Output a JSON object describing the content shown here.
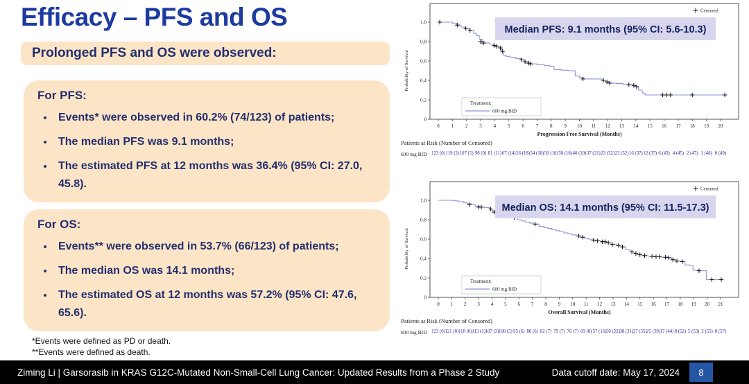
{
  "slide": {
    "title": "Efficacy – PFS and OS",
    "subtitle": "Prolonged PFS and OS were observed:",
    "pfs_box": {
      "heading": "For PFS:",
      "bullets": [
        "Events* were observed in 60.2% (74/123) of patients;",
        "The median PFS was 9.1 months;",
        "The estimated PFS at 12 months was 36.4% (95% CI: 27.0, 45.8)."
      ]
    },
    "os_box": {
      "heading": "For OS:",
      "bullets": [
        "Events** were observed in 53.7% (66/123) of patients;",
        "The median OS was 14.1 months;",
        "The estimated OS at 12 months was 57.2% (95% CI: 47.6, 65.6)."
      ]
    },
    "footnotes": {
      "line1": "*Events were defined as PD or death.",
      "line2": "**Events were defined as death."
    },
    "footer": {
      "left": "Ziming Li | Garsorasib in KRAS G12C-Mutated Non-Small-Cell Lung Cancer: Updated Results from a Phase 2 Study",
      "right": "Data cutoff date: May 17, 2024",
      "page": "8"
    },
    "colors": {
      "title_blue": "#1d3a9e",
      "navy_text": "#232e6e",
      "peach_box": "#fce5c7",
      "footer_page_box": "#2456a3",
      "km_curve": "#8d93d8",
      "annotation_bg": "#d8d6ee"
    }
  },
  "chart_data": [
    {
      "type": "line",
      "subtype": "kaplan-meier",
      "annotation": "Median PFS: 9.1 months (95% CI: 5.6-10.3)",
      "annotation_bg": "#d8d6ee",
      "xlabel": "Progression Free Survival (Months)",
      "ylabel": "Probability of Survival",
      "xlim": [
        0,
        20
      ],
      "ylim": [
        0,
        1.0
      ],
      "yticks": [
        0,
        0.2,
        0.4,
        0.6,
        0.8,
        1.0
      ],
      "censored_label": "Censored",
      "legend": {
        "title": "Treatment:",
        "series_label": "600 mg BID"
      },
      "series": [
        {
          "name": "600 mg BID",
          "color": "#8d93d8",
          "steps": [
            [
              0,
              1.0
            ],
            [
              1.0,
              0.99
            ],
            [
              1.3,
              0.97
            ],
            [
              1.6,
              0.95
            ],
            [
              1.9,
              0.935
            ],
            [
              2.2,
              0.915
            ],
            [
              2.5,
              0.885
            ],
            [
              2.7,
              0.86
            ],
            [
              2.9,
              0.825
            ],
            [
              3.1,
              0.8
            ],
            [
              3.3,
              0.785
            ],
            [
              3.6,
              0.775
            ],
            [
              3.9,
              0.76
            ],
            [
              4.1,
              0.75
            ],
            [
              4.3,
              0.735
            ],
            [
              4.45,
              0.7
            ],
            [
              4.6,
              0.66
            ],
            [
              4.8,
              0.648
            ],
            [
              5.1,
              0.638
            ],
            [
              5.5,
              0.625
            ],
            [
              5.85,
              0.612
            ],
            [
              6.1,
              0.592
            ],
            [
              6.35,
              0.578
            ],
            [
              6.6,
              0.57
            ],
            [
              7.0,
              0.562
            ],
            [
              7.5,
              0.552
            ],
            [
              7.9,
              0.545
            ],
            [
              8.2,
              0.512
            ],
            [
              8.7,
              0.506
            ],
            [
              9.2,
              0.5
            ],
            [
              9.7,
              0.445
            ],
            [
              10.0,
              0.428
            ],
            [
              10.3,
              0.415
            ],
            [
              11.6,
              0.4
            ],
            [
              11.85,
              0.385
            ],
            [
              12.1,
              0.372
            ],
            [
              12.6,
              0.368
            ],
            [
              13.1,
              0.356
            ],
            [
              13.75,
              0.348
            ],
            [
              14.0,
              0.335
            ],
            [
              14.2,
              0.3
            ],
            [
              14.45,
              0.27
            ],
            [
              14.65,
              0.25
            ],
            [
              20.35,
              0.25
            ]
          ],
          "censor_marks": [
            [
              0.1,
              1.0
            ],
            [
              1.35,
              0.97
            ],
            [
              1.95,
              0.935
            ],
            [
              2.25,
              0.915
            ],
            [
              3.0,
              0.8
            ],
            [
              3.2,
              0.785
            ],
            [
              3.95,
              0.76
            ],
            [
              4.15,
              0.75
            ],
            [
              4.4,
              0.735
            ],
            [
              4.55,
              0.7
            ],
            [
              5.9,
              0.612
            ],
            [
              6.15,
              0.592
            ],
            [
              6.4,
              0.578
            ],
            [
              6.55,
              0.57
            ],
            [
              10.25,
              0.415
            ],
            [
              11.7,
              0.4
            ],
            [
              11.95,
              0.385
            ],
            [
              12.15,
              0.372
            ],
            [
              13.5,
              0.356
            ],
            [
              13.85,
              0.348
            ],
            [
              14.05,
              0.335
            ],
            [
              15.9,
              0.25
            ],
            [
              16.15,
              0.25
            ],
            [
              16.45,
              0.25
            ],
            [
              18.0,
              0.25
            ],
            [
              20.3,
              0.25
            ]
          ]
        }
      ],
      "at_risk": {
        "header": "Patients at Risk (Number of Censored)",
        "row_label": "600 mg BID",
        "values": [
          "123 (0)",
          "119 (2)",
          "107 (5)",
          "98 (9)",
          "81 (11)",
          "67 (14)",
          "56 (18)",
          "54 (18)",
          "50 (18)",
          "50 (18)",
          "40 (19)",
          "37 (21)",
          "23 (32)",
          "23 (32)",
          "16 (37)",
          "12 (37)",
          "6 (43)",
          "4 (45)",
          "2 (47)",
          "1 (48)",
          "0 (49)"
        ]
      }
    },
    {
      "type": "line",
      "subtype": "kaplan-meier",
      "annotation": "Median OS: 14.1 months (95% CI: 11.5-17.3)",
      "annotation_bg": "#d8d6ee",
      "xlabel": "Overall Survival (Months)",
      "ylabel": "Probability of Survival",
      "xlim": [
        0,
        21
      ],
      "ylim": [
        0,
        1.0
      ],
      "yticks": [
        0,
        0.2,
        0.4,
        0.6,
        0.8,
        1.0
      ],
      "censored_label": "Censored",
      "legend": {
        "title": "Treatment:",
        "series_label": "600 mg BID"
      },
      "series": [
        {
          "name": "600 mg BID",
          "color": "#8d93d8",
          "steps": [
            [
              0,
              1.0
            ],
            [
              1.1,
              0.995
            ],
            [
              1.5,
              0.985
            ],
            [
              1.9,
              0.975
            ],
            [
              2.15,
              0.965
            ],
            [
              2.45,
              0.955
            ],
            [
              2.75,
              0.94
            ],
            [
              3.05,
              0.93
            ],
            [
              3.45,
              0.925
            ],
            [
              3.8,
              0.91
            ],
            [
              4.0,
              0.893
            ],
            [
              4.25,
              0.878
            ],
            [
              4.5,
              0.865
            ],
            [
              4.75,
              0.853
            ],
            [
              5.0,
              0.843
            ],
            [
              5.3,
              0.833
            ],
            [
              5.6,
              0.822
            ],
            [
              5.9,
              0.8
            ],
            [
              6.2,
              0.787
            ],
            [
              6.5,
              0.775
            ],
            [
              6.8,
              0.765
            ],
            [
              7.1,
              0.755
            ],
            [
              7.5,
              0.732
            ],
            [
              7.85,
              0.72
            ],
            [
              8.15,
              0.71
            ],
            [
              8.45,
              0.698
            ],
            [
              8.75,
              0.687
            ],
            [
              9.05,
              0.675
            ],
            [
              9.35,
              0.664
            ],
            [
              9.65,
              0.654
            ],
            [
              9.95,
              0.644
            ],
            [
              10.25,
              0.633
            ],
            [
              10.55,
              0.62
            ],
            [
              10.85,
              0.61
            ],
            [
              11.15,
              0.6
            ],
            [
              11.45,
              0.59
            ],
            [
              11.75,
              0.582
            ],
            [
              12.1,
              0.573
            ],
            [
              12.5,
              0.562
            ],
            [
              12.85,
              0.545
            ],
            [
              13.25,
              0.534
            ],
            [
              13.6,
              0.52
            ],
            [
              13.95,
              0.49
            ],
            [
              14.25,
              0.468
            ],
            [
              14.55,
              0.452
            ],
            [
              14.85,
              0.44
            ],
            [
              15.15,
              0.43
            ],
            [
              15.6,
              0.424
            ],
            [
              16.1,
              0.418
            ],
            [
              16.6,
              0.413
            ],
            [
              17.1,
              0.408
            ],
            [
              17.35,
              0.388
            ],
            [
              17.65,
              0.374
            ],
            [
              18.1,
              0.368
            ],
            [
              18.35,
              0.334
            ],
            [
              18.7,
              0.328
            ],
            [
              18.95,
              0.28
            ],
            [
              19.35,
              0.274
            ],
            [
              19.95,
              0.182
            ],
            [
              21.2,
              0.182
            ]
          ],
          "censor_marks": [
            [
              2.3,
              0.955
            ],
            [
              3.0,
              0.93
            ],
            [
              3.2,
              0.93
            ],
            [
              3.9,
              0.91
            ],
            [
              4.15,
              0.878
            ],
            [
              5.65,
              0.822
            ],
            [
              7.2,
              0.755
            ],
            [
              10.45,
              0.633
            ],
            [
              10.75,
              0.62
            ],
            [
              11.55,
              0.59
            ],
            [
              11.85,
              0.582
            ],
            [
              12.2,
              0.573
            ],
            [
              12.4,
              0.573
            ],
            [
              12.65,
              0.562
            ],
            [
              12.95,
              0.545
            ],
            [
              13.4,
              0.534
            ],
            [
              13.7,
              0.52
            ],
            [
              14.4,
              0.468
            ],
            [
              14.7,
              0.452
            ],
            [
              15.0,
              0.44
            ],
            [
              15.35,
              0.43
            ],
            [
              15.9,
              0.424
            ],
            [
              16.2,
              0.418
            ],
            [
              16.45,
              0.418
            ],
            [
              16.9,
              0.413
            ],
            [
              17.15,
              0.408
            ],
            [
              17.45,
              0.388
            ],
            [
              17.75,
              0.374
            ],
            [
              18.15,
              0.368
            ],
            [
              19.4,
              0.274
            ],
            [
              20.35,
              0.182
            ],
            [
              21.05,
              0.182
            ]
          ]
        }
      ],
      "at_risk": {
        "header": "Patients at Risk (Number of Censored)",
        "row_label": "600 mg BID",
        "values": [
          "123 (0)",
          "121 (0)",
          "118 (0)",
          "113 (1)",
          "107 (3)",
          "100 (5)",
          "95 (6)",
          "88 (6)",
          "82 (7)",
          "79 (7)",
          "76 (7)",
          "69 (8)",
          "57 (16)",
          "50 (22)",
          "38 (31)",
          "27 (35)",
          "25 (39)",
          "17 (44)",
          "8 (52)",
          "5 (53)",
          "2 (55)",
          "0 (57)"
        ]
      }
    }
  ]
}
